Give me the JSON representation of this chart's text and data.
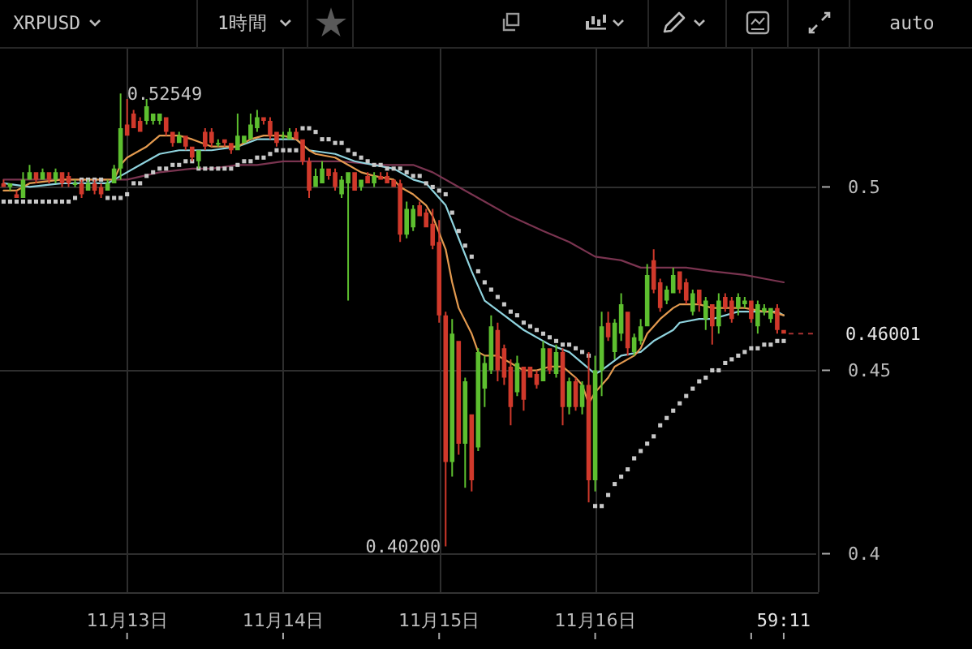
{
  "chart_data": {
    "type": "candlestick",
    "title": "XRPUSD",
    "subtitle": "1時間",
    "annotations": [
      "auto",
      {
        "text": "0.52549",
        "x": "--11-12T23:00",
        "y": 0.52549
      },
      {
        "text": "0.40200",
        "x": "--11-15T01:00",
        "y": 0.402
      },
      "0.46001",
      "59:11"
    ],
    "x": [
      "--11-12T05:00",
      "--11-12T06:00",
      "--11-12T07:00",
      "--11-12T08:00",
      "--11-12T09:00",
      "--11-12T10:00",
      "--11-12T11:00",
      "--11-12T12:00",
      "--11-12T13:00",
      "--11-12T14:00",
      "--11-12T15:00",
      "--11-12T16:00",
      "--11-12T17:00",
      "--11-12T18:00",
      "--11-12T19:00",
      "--11-12T20:00",
      "--11-12T21:00",
      "--11-12T22:00",
      "--11-12T23:00",
      "--11-13T00:00",
      "--11-13T01:00",
      "--11-13T02:00",
      "--11-13T03:00",
      "--11-13T04:00",
      "--11-13T05:00",
      "--11-13T06:00",
      "--11-13T07:00",
      "--11-13T08:00",
      "--11-13T09:00",
      "--11-13T10:00",
      "--11-13T11:00",
      "--11-13T12:00",
      "--11-13T13:00",
      "--11-13T14:00",
      "--11-13T15:00",
      "--11-13T16:00",
      "--11-13T17:00",
      "--11-13T18:00",
      "--11-13T19:00",
      "--11-13T20:00",
      "--11-13T21:00",
      "--11-13T22:00",
      "--11-13T23:00",
      "--11-14T00:00",
      "--11-14T01:00",
      "--11-14T02:00",
      "--11-14T03:00",
      "--11-14T04:00",
      "--11-14T05:00",
      "--11-14T06:00",
      "--11-14T07:00",
      "--11-14T08:00",
      "--11-14T09:00",
      "--11-14T10:00",
      "--11-14T11:00",
      "--11-14T12:00",
      "--11-14T13:00",
      "--11-14T14:00",
      "--11-14T15:00",
      "--11-14T16:00",
      "--11-14T17:00",
      "--11-14T18:00",
      "--11-14T19:00",
      "--11-14T20:00",
      "--11-14T21:00",
      "--11-14T22:00",
      "--11-14T23:00",
      "--11-15T00:00",
      "--11-15T01:00",
      "--11-15T02:00",
      "--11-15T03:00",
      "--11-15T04:00",
      "--11-15T05:00",
      "--11-15T06:00",
      "--11-15T07:00",
      "--11-15T08:00",
      "--11-15T09:00",
      "--11-15T10:00",
      "--11-15T11:00",
      "--11-15T12:00",
      "--11-15T13:00",
      "--11-15T14:00",
      "--11-15T15:00",
      "--11-15T16:00",
      "--11-15T17:00",
      "--11-15T18:00",
      "--11-15T19:00",
      "--11-15T20:00",
      "--11-15T21:00",
      "--11-15T22:00",
      "--11-15T23:00",
      "--11-16T00:00",
      "--11-16T01:00",
      "--11-16T02:00",
      "--11-16T03:00",
      "--11-16T04:00",
      "--11-16T05:00",
      "--11-16T06:00",
      "--11-16T07:00",
      "--11-16T08:00",
      "--11-16T09:00",
      "--11-16T10:00",
      "--11-16T11:00",
      "--11-16T12:00",
      "--11-16T13:00",
      "--11-16T14:00",
      "--11-16T15:00",
      "--11-16T16:00",
      "--11-16T17:00",
      "--11-16T18:00",
      "--11-16T19:00",
      "--11-16T20:00",
      "--11-16T21:00",
      "--11-16T22:00",
      "--11-16T23:00",
      "--11-17T00:00",
      "--11-17T01:00",
      "--11-17T02:00",
      "--11-17T03:00",
      "--11-17T04:00",
      "--11-17T05:00"
    ],
    "ohlc": [
      [
        0.501,
        0.502,
        0.5,
        0.5
      ],
      [
        0.5,
        0.501,
        0.499,
        0.501
      ],
      [
        0.498,
        0.499,
        0.497,
        0.497
      ],
      [
        0.497,
        0.504,
        0.497,
        0.502
      ],
      [
        0.502,
        0.506,
        0.502,
        0.504
      ],
      [
        0.504,
        0.504,
        0.501,
        0.502
      ],
      [
        0.502,
        0.505,
        0.502,
        0.504
      ],
      [
        0.504,
        0.504,
        0.501,
        0.502
      ],
      [
        0.502,
        0.505,
        0.501,
        0.504
      ],
      [
        0.504,
        0.504,
        0.5,
        0.501
      ],
      [
        0.503,
        0.504,
        0.5,
        0.501
      ],
      [
        0.501,
        0.502,
        0.5,
        0.501
      ],
      [
        0.501,
        0.502,
        0.497,
        0.498
      ],
      [
        0.499,
        0.502,
        0.499,
        0.501
      ],
      [
        0.501,
        0.502,
        0.498,
        0.499
      ],
      [
        0.5,
        0.501,
        0.497,
        0.498
      ],
      [
        0.499,
        0.502,
        0.499,
        0.501
      ],
      [
        0.501,
        0.506,
        0.501,
        0.505
      ],
      [
        0.505,
        0.52549,
        0.502,
        0.516
      ],
      [
        0.517,
        0.524,
        0.514,
        0.514
      ],
      [
        0.52,
        0.521,
        0.516,
        0.516
      ],
      [
        0.518,
        0.519,
        0.515,
        0.515
      ],
      [
        0.518,
        0.524,
        0.517,
        0.522
      ],
      [
        0.518,
        0.52,
        0.517,
        0.52
      ],
      [
        0.518,
        0.52,
        0.517,
        0.52
      ],
      [
        0.519,
        0.519,
        0.514,
        0.515
      ],
      [
        0.515,
        0.515,
        0.511,
        0.512
      ],
      [
        0.512,
        0.515,
        0.512,
        0.514
      ],
      [
        0.514,
        0.514,
        0.51,
        0.511
      ],
      [
        0.511,
        0.511,
        0.507,
        0.508
      ],
      [
        0.507,
        0.51,
        0.505,
        0.51
      ],
      [
        0.515,
        0.516,
        0.51,
        0.511
      ],
      [
        0.515,
        0.516,
        0.511,
        0.512
      ],
      [
        0.512,
        0.513,
        0.511,
        0.512
      ],
      [
        0.513,
        0.513,
        0.511,
        0.512
      ],
      [
        0.512,
        0.512,
        0.509,
        0.51
      ],
      [
        0.51,
        0.52,
        0.51,
        0.514
      ],
      [
        0.512,
        0.514,
        0.512,
        0.514
      ],
      [
        0.513,
        0.52,
        0.513,
        0.517
      ],
      [
        0.516,
        0.521,
        0.515,
        0.519
      ],
      [
        0.519,
        0.519,
        0.517,
        0.518
      ],
      [
        0.518,
        0.519,
        0.513,
        0.514
      ],
      [
        0.515,
        0.515,
        0.511,
        0.512
      ],
      [
        0.514,
        0.515,
        0.513,
        0.514
      ],
      [
        0.513,
        0.516,
        0.513,
        0.515
      ],
      [
        0.515,
        0.516,
        0.513,
        0.513
      ],
      [
        0.513,
        0.513,
        0.506,
        0.507
      ],
      [
        0.507,
        0.508,
        0.497,
        0.499
      ],
      [
        0.5,
        0.505,
        0.5,
        0.503
      ],
      [
        0.501,
        0.507,
        0.501,
        0.505
      ],
      [
        0.505,
        0.505,
        0.502,
        0.503
      ],
      [
        0.504,
        0.505,
        0.499,
        0.5
      ],
      [
        0.498,
        0.503,
        0.497,
        0.502
      ],
      [
        0.501,
        0.504,
        0.469,
        0.504
      ],
      [
        0.504,
        0.504,
        0.499,
        0.499
      ],
      [
        0.5,
        0.502,
        0.499,
        0.502
      ],
      [
        0.503,
        0.504,
        0.501,
        0.501
      ],
      [
        0.501,
        0.504,
        0.5,
        0.503
      ],
      [
        0.503,
        0.504,
        0.502,
        0.502
      ],
      [
        0.503,
        0.504,
        0.501,
        0.501
      ],
      [
        0.502,
        0.502,
        0.5,
        0.5
      ],
      [
        0.501,
        0.502,
        0.485,
        0.487
      ],
      [
        0.487,
        0.496,
        0.486,
        0.494
      ],
      [
        0.489,
        0.495,
        0.488,
        0.494
      ],
      [
        0.495,
        0.496,
        0.492,
        0.492
      ],
      [
        0.493,
        0.494,
        0.489,
        0.489
      ],
      [
        0.49,
        0.494,
        0.483,
        0.484
      ],
      [
        0.485,
        0.491,
        0.463,
        0.465
      ],
      [
        0.465,
        0.466,
        0.402,
        0.425
      ],
      [
        0.425,
        0.464,
        0.421,
        0.46
      ],
      [
        0.458,
        0.458,
        0.427,
        0.43
      ],
      [
        0.43,
        0.448,
        0.418,
        0.447
      ],
      [
        0.438,
        0.438,
        0.417,
        0.42
      ],
      [
        0.429,
        0.456,
        0.428,
        0.455
      ],
      [
        0.445,
        0.454,
        0.44,
        0.452
      ],
      [
        0.45,
        0.465,
        0.449,
        0.462
      ],
      [
        0.461,
        0.463,
        0.447,
        0.45
      ],
      [
        0.456,
        0.457,
        0.446,
        0.448
      ],
      [
        0.451,
        0.453,
        0.435,
        0.44
      ],
      [
        0.444,
        0.454,
        0.443,
        0.452
      ],
      [
        0.451,
        0.451,
        0.439,
        0.442
      ],
      [
        0.451,
        0.451,
        0.448,
        0.448
      ],
      [
        0.449,
        0.45,
        0.445,
        0.446
      ],
      [
        0.447,
        0.458,
        0.447,
        0.456
      ],
      [
        0.456,
        0.456,
        0.449,
        0.45
      ],
      [
        0.449,
        0.457,
        0.448,
        0.455
      ],
      [
        0.455,
        0.456,
        0.435,
        0.44
      ],
      [
        0.44,
        0.448,
        0.438,
        0.447
      ],
      [
        0.447,
        0.448,
        0.439,
        0.44
      ],
      [
        0.44,
        0.447,
        0.438,
        0.446
      ],
      [
        0.446,
        0.455,
        0.414,
        0.42
      ],
      [
        0.42,
        0.454,
        0.417,
        0.45
      ],
      [
        0.45,
        0.466,
        0.443,
        0.462
      ],
      [
        0.463,
        0.466,
        0.458,
        0.459
      ],
      [
        0.455,
        0.464,
        0.453,
        0.463
      ],
      [
        0.46,
        0.471,
        0.458,
        0.468
      ],
      [
        0.466,
        0.466,
        0.454,
        0.456
      ],
      [
        0.455,
        0.46,
        0.454,
        0.459
      ],
      [
        0.458,
        0.464,
        0.457,
        0.462
      ],
      [
        0.462,
        0.479,
        0.462,
        0.476
      ],
      [
        0.48,
        0.483,
        0.471,
        0.472
      ],
      [
        0.474,
        0.475,
        0.466,
        0.467
      ],
      [
        0.469,
        0.473,
        0.468,
        0.472
      ],
      [
        0.471,
        0.478,
        0.471,
        0.476
      ],
      [
        0.477,
        0.477,
        0.471,
        0.472
      ],
      [
        0.474,
        0.475,
        0.468,
        0.469
      ],
      [
        0.466,
        0.472,
        0.465,
        0.471
      ],
      [
        0.472,
        0.472,
        0.466,
        0.468
      ],
      [
        0.464,
        0.47,
        0.461,
        0.469
      ],
      [
        0.468,
        0.468,
        0.457,
        0.462
      ],
      [
        0.462,
        0.471,
        0.46,
        0.469
      ],
      [
        0.47,
        0.471,
        0.466,
        0.467
      ],
      [
        0.469,
        0.47,
        0.463,
        0.464
      ],
      [
        0.467,
        0.471,
        0.465,
        0.47
      ],
      [
        0.468,
        0.47,
        0.467,
        0.469
      ],
      [
        0.469,
        0.469,
        0.463,
        0.464
      ],
      [
        0.462,
        0.469,
        0.46,
        0.468
      ],
      [
        0.466,
        0.468,
        0.465,
        0.467
      ],
      [
        0.464,
        0.467,
        0.463,
        0.467
      ],
      [
        0.467,
        0.468,
        0.46,
        0.461
      ],
      [
        0.461,
        0.461,
        0.46,
        0.46001
      ]
    ],
    "colors": [
      "#d0392b",
      "#5dbf2f",
      "#d0392b",
      "#5dbf2f",
      "#5dbf2f",
      "#d0392b",
      "#5dbf2f",
      "#d0392b",
      "#5dbf2f",
      "#d0392b",
      "#d0392b",
      "#5dbf2f",
      "#d0392b",
      "#5dbf2f",
      "#d0392b",
      "#d0392b",
      "#5dbf2f",
      "#5dbf2f",
      "#5dbf2f",
      "#d0392b",
      "#d0392b",
      "#d0392b",
      "#5dbf2f",
      "#5dbf2f",
      "#5dbf2f",
      "#d0392b",
      "#d0392b",
      "#5dbf2f",
      "#d0392b",
      "#d0392b",
      "#5dbf2f",
      "#d0392b",
      "#d0392b",
      "#5dbf2f",
      "#d0392b",
      "#d0392b",
      "#5dbf2f",
      "#5dbf2f",
      "#5dbf2f",
      "#5dbf2f",
      "#d0392b",
      "#d0392b",
      "#d0392b",
      "#5dbf2f",
      "#5dbf2f",
      "#d0392b",
      "#d0392b",
      "#d0392b",
      "#5dbf2f",
      "#5dbf2f",
      "#d0392b",
      "#d0392b",
      "#5dbf2f",
      "#5dbf2f",
      "#d0392b",
      "#5dbf2f",
      "#d0392b",
      "#5dbf2f",
      "#d0392b",
      "#d0392b",
      "#d0392b",
      "#d0392b",
      "#5dbf2f",
      "#5dbf2f",
      "#d0392b",
      "#d0392b",
      "#d0392b",
      "#d0392b",
      "#d0392b",
      "#5dbf2f",
      "#d0392b",
      "#5dbf2f",
      "#d0392b",
      "#5dbf2f",
      "#5dbf2f",
      "#5dbf2f",
      "#d0392b",
      "#d0392b",
      "#d0392b",
      "#5dbf2f",
      "#d0392b",
      "#d0392b",
      "#d0392b",
      "#5dbf2f",
      "#d0392b",
      "#5dbf2f",
      "#d0392b",
      "#5dbf2f",
      "#d0392b",
      "#5dbf2f",
      "#d0392b",
      "#5dbf2f",
      "#5dbf2f",
      "#d0392b",
      "#5dbf2f",
      "#5dbf2f",
      "#d0392b",
      "#5dbf2f",
      "#5dbf2f",
      "#5dbf2f",
      "#d0392b",
      "#d0392b",
      "#5dbf2f",
      "#5dbf2f",
      "#d0392b",
      "#d0392b",
      "#5dbf2f",
      "#d0392b",
      "#5dbf2f",
      "#d0392b",
      "#5dbf2f",
      "#d0392b",
      "#d0392b",
      "#5dbf2f",
      "#5dbf2f",
      "#d0392b",
      "#5dbf2f",
      "#5dbf2f",
      "#5dbf2f",
      "#d0392b",
      "#d0392b"
    ],
    "series": [
      {
        "type": "line",
        "color": "#7a3450",
        "x": [
          "--11-12T05:00",
          "--11-12T21:00",
          "--11-13T00:00",
          "--11-13T05:00",
          "--11-13T10:00",
          "--11-13T13:00",
          "--11-13T17:00",
          "--11-13T20:00",
          "--11-14T00:00",
          "--11-14T04:00",
          "--11-14T09:00",
          "--11-14T15:00",
          "--11-14T20:00",
          "--11-14T23:00",
          "--11-15T02:00",
          "--11-15T07:00",
          "--11-15T11:00",
          "--11-15T16:00",
          "--11-15T20:00",
          "--11-16T00:00",
          "--11-16T04:00",
          "--11-16T07:00",
          "--11-16T11:00",
          "--11-16T14:00",
          "--11-16T18:00",
          "--11-16T23:00",
          "--11-17T02:00",
          "--11-17T05:00"
        ],
        "values": [
          0.502,
          0.502,
          0.502,
          0.504,
          0.505,
          0.505,
          0.506,
          0.506,
          0.507,
          0.507,
          0.507,
          0.506,
          0.506,
          0.504,
          0.501,
          0.496,
          0.492,
          0.488,
          0.485,
          0.481,
          0.48,
          0.478,
          0.478,
          0.478,
          0.477,
          0.476,
          0.475,
          0.474
        ]
      },
      {
        "type": "line",
        "color": "#8fd3de",
        "x": [
          "--11-12T05:00",
          "--11-12T09:00",
          "--11-12T14:00",
          "--11-12T21:00",
          "--11-12T23:00",
          "--11-13T02:00",
          "--11-13T05:00",
          "--11-13T08:00",
          "--11-13T13:00",
          "--11-13T17:00",
          "--11-13T20:00",
          "--11-13T22:00",
          "--11-14T02:00",
          "--11-14T04:00",
          "--11-14T08:00",
          "--11-14T11:00",
          "--11-14T14:00",
          "--11-14T17:00",
          "--11-14T19:00",
          "--11-14T20:00",
          "--11-14T22:00",
          "--11-15T01:00",
          "--11-15T03:00",
          "--11-15T05:00",
          "--11-15T07:00",
          "--11-15T10:00",
          "--11-15T13:00",
          "--11-15T17:00",
          "--11-15T20:00",
          "--11-15T22:00",
          "--11-16T00:00",
          "--11-16T01:00",
          "--11-16T04:00",
          "--11-16T07:00",
          "--11-16T09:00",
          "--11-16T12:00",
          "--11-16T13:00",
          "--11-16T16:00",
          "--11-16T18:00",
          "--11-16T22:00",
          "--11-17T01:00",
          "--11-17T04:00",
          "--11-17T05:00"
        ],
        "values": [
          0.501,
          0.5,
          0.501,
          0.501,
          0.503,
          0.506,
          0.509,
          0.51,
          0.51,
          0.511,
          0.513,
          0.513,
          0.513,
          0.51,
          0.509,
          0.507,
          0.506,
          0.505,
          0.503,
          0.502,
          0.501,
          0.495,
          0.486,
          0.477,
          0.469,
          0.465,
          0.461,
          0.457,
          0.455,
          0.452,
          0.449,
          0.45,
          0.454,
          0.455,
          0.458,
          0.461,
          0.463,
          0.464,
          0.464,
          0.466,
          0.466,
          0.466,
          0.465
        ]
      },
      {
        "type": "line",
        "color": "#e39a4f",
        "x": [
          "--11-12T05:00",
          "--11-12T07:00",
          "--11-12T09:00",
          "--11-12T14:00",
          "--11-12T19:00",
          "--11-12T22:00",
          "--11-12T23:00",
          "--11-13T00:00",
          "--11-13T03:00",
          "--11-13T05:00",
          "--11-13T08:00",
          "--11-13T10:00",
          "--11-13T13:00",
          "--11-13T17:00",
          "--11-13T19:00",
          "--11-13T21:00",
          "--11-14T00:00",
          "--11-14T02:00",
          "--11-14T04:00",
          "--11-14T05:00",
          "--11-14T08:00",
          "--11-14T10:00",
          "--11-14T12:00",
          "--11-14T14:00",
          "--11-14T17:00",
          "--11-14T18:00",
          "--11-14T20:00",
          "--11-14T22:00",
          "--11-14T23:00",
          "--11-15T01:00",
          "--11-15T02:00",
          "--11-15T03:00",
          "--11-15T05:00",
          "--11-15T06:00",
          "--11-15T07:00",
          "--11-15T09:00",
          "--11-15T11:00",
          "--11-15T13:00",
          "--11-15T15:00",
          "--11-15T17:00",
          "--11-15T19:00",
          "--11-15T21:00",
          "--11-15T22:00",
          "--11-15T23:00",
          "--11-16T00:00",
          "--11-16T02:00",
          "--11-16T03:00",
          "--11-16T06:00",
          "--11-16T07:00",
          "--11-16T08:00",
          "--11-16T10:00",
          "--11-16T12:00",
          "--11-16T13:00",
          "--11-16T16:00",
          "--11-16T18:00",
          "--11-16T21:00",
          "--11-16T23:00",
          "--11-17T02:00",
          "--11-17T03:00",
          "--11-17T05:00"
        ],
        "values": [
          0.499,
          0.499,
          0.501,
          0.502,
          0.502,
          0.502,
          0.506,
          0.508,
          0.511,
          0.514,
          0.514,
          0.513,
          0.511,
          0.511,
          0.513,
          0.514,
          0.514,
          0.513,
          0.51,
          0.509,
          0.508,
          0.506,
          0.504,
          0.503,
          0.502,
          0.5,
          0.498,
          0.495,
          0.492,
          0.483,
          0.474,
          0.467,
          0.46,
          0.455,
          0.454,
          0.454,
          0.452,
          0.45,
          0.45,
          0.451,
          0.451,
          0.448,
          0.446,
          0.441,
          0.444,
          0.448,
          0.451,
          0.454,
          0.456,
          0.46,
          0.464,
          0.467,
          0.468,
          0.468,
          0.467,
          0.467,
          0.467,
          0.466,
          0.466,
          0.465
        ]
      },
      {
        "type": "scatter",
        "color": "#c8c8c8",
        "marker": "square",
        "values": [
          0.496,
          0.496,
          0.496,
          0.496,
          0.496,
          0.496,
          0.496,
          0.496,
          0.496,
          0.496,
          0.496,
          0.497,
          0.502,
          0.502,
          0.502,
          0.502,
          0.497,
          0.497,
          0.497,
          0.498,
          0.501,
          0.501,
          0.503,
          0.504,
          0.505,
          0.505,
          0.506,
          0.506,
          0.507,
          0.507,
          0.505,
          0.505,
          0.505,
          0.505,
          0.505,
          0.505,
          0.506,
          0.507,
          0.507,
          0.508,
          0.508,
          0.509,
          0.51,
          0.51,
          0.51,
          0.51,
          0.516,
          0.516,
          0.515,
          0.513,
          0.513,
          0.512,
          0.512,
          0.51,
          0.509,
          0.508,
          0.507,
          0.506,
          0.506,
          0.505,
          0.505,
          0.505,
          0.504,
          0.503,
          0.503,
          0.501,
          0.5,
          0.499,
          0.498,
          0.493,
          0.488,
          0.484,
          0.481,
          0.477,
          0.474,
          0.472,
          0.47,
          0.468,
          0.466,
          0.465,
          0.463,
          0.462,
          0.461,
          0.46,
          0.459,
          0.458,
          0.457,
          0.457,
          0.456,
          0.455,
          0.454,
          0.413,
          0.413,
          0.416,
          0.419,
          0.421,
          0.423,
          0.426,
          0.428,
          0.43,
          0.432,
          0.435,
          0.437,
          0.439,
          0.441,
          0.443,
          0.445,
          0.447,
          0.448,
          0.45,
          0.45,
          0.452,
          0.453,
          0.454,
          0.455,
          0.456,
          0.456,
          0.457,
          0.457,
          0.458,
          0.458
        ]
      }
    ],
    "xlim": [
      "--11-12T04:27",
      "--11-17T10:00"
    ],
    "xticks": [
      {
        "value": "--11-13",
        "label": "11月13日"
      },
      {
        "value": "--11-14",
        "label": "11月14日"
      },
      {
        "value": "--11-15",
        "label": "11月15日"
      },
      {
        "value": "--11-16",
        "label": "11月16日"
      },
      {
        "value": "--11-17",
        "label": null
      }
    ],
    "ylim": [
      0.3895,
      0.5377
    ],
    "yticks": [
      0.4,
      0.45,
      0.5
    ],
    "grid": true
  }
}
